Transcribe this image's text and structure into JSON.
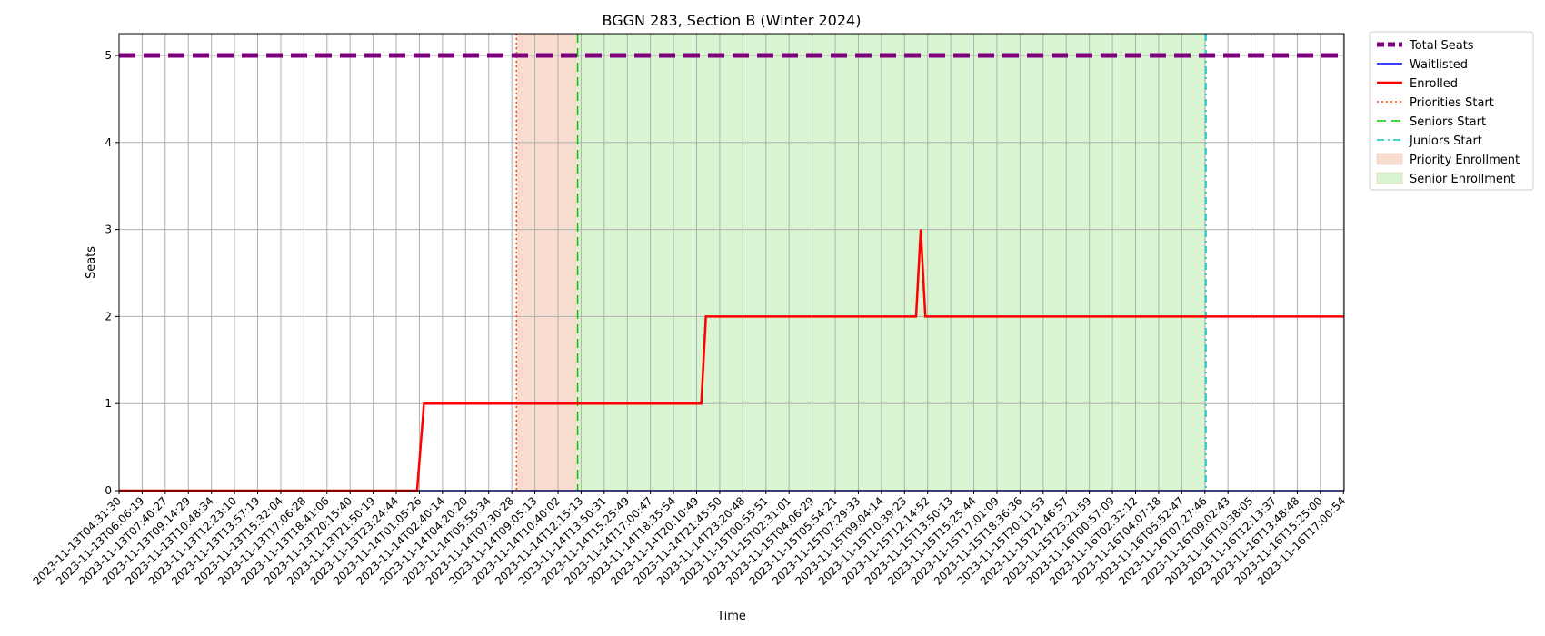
{
  "chart_data": {
    "type": "line",
    "title": "BGGN 283, Section B (Winter 2024)",
    "xlabel": "Time",
    "ylabel": "Seats",
    "ylim": [
      0,
      5.25
    ],
    "y_ticks": [
      0,
      1,
      2,
      3,
      4,
      5
    ],
    "grid": true,
    "legend_position": "outside-top-right",
    "x_ticks": [
      "2023-11-13T04:31:30",
      "2023-11-13T06:06:19",
      "2023-11-13T07:40:27",
      "2023-11-13T09:14:29",
      "2023-11-13T10:48:34",
      "2023-11-13T12:23:10",
      "2023-11-13T13:57:19",
      "2023-11-13T15:32:04",
      "2023-11-13T17:06:28",
      "2023-11-13T18:41:06",
      "2023-11-13T20:15:40",
      "2023-11-13T21:50:19",
      "2023-11-13T23:24:44",
      "2023-11-14T01:05:26",
      "2023-11-14T02:40:14",
      "2023-11-14T04:20:20",
      "2023-11-14T05:55:34",
      "2023-11-14T07:30:28",
      "2023-11-14T09:05:13",
      "2023-11-14T10:40:02",
      "2023-11-14T12:15:13",
      "2023-11-14T13:50:31",
      "2023-11-14T15:25:49",
      "2023-11-14T17:00:47",
      "2023-11-14T18:35:54",
      "2023-11-14T20:10:49",
      "2023-11-14T21:45:50",
      "2023-11-14T23:20:48",
      "2023-11-15T00:55:51",
      "2023-11-15T02:31:01",
      "2023-11-15T04:06:29",
      "2023-11-15T05:54:21",
      "2023-11-15T07:29:33",
      "2023-11-15T09:04:14",
      "2023-11-15T10:39:23",
      "2023-11-15T12:14:52",
      "2023-11-15T13:50:13",
      "2023-11-15T15:25:44",
      "2023-11-15T17:01:09",
      "2023-11-15T18:36:36",
      "2023-11-15T20:11:53",
      "2023-11-15T21:46:57",
      "2023-11-15T23:21:59",
      "2023-11-16T00:57:09",
      "2023-11-16T02:32:12",
      "2023-11-16T04:07:18",
      "2023-11-16T05:52:47",
      "2023-11-16T07:27:46",
      "2023-11-16T09:02:43",
      "2023-11-16T10:38:05",
      "2023-11-16T12:13:37",
      "2023-11-16T13:48:48",
      "2023-11-16T15:25:00",
      "2023-11-16T17:00:54"
    ],
    "x_range_in_tick_units": [
      0,
      53.1
    ],
    "series": [
      {
        "name": "Total Seats",
        "color": "#800080",
        "style": "dashed",
        "points": [
          [
            0,
            5
          ],
          [
            53.1,
            5
          ]
        ]
      },
      {
        "name": "Waitlisted",
        "color": "#0000ff",
        "style": "solid",
        "points": [
          [
            0,
            0
          ],
          [
            53.1,
            0
          ]
        ]
      },
      {
        "name": "Enrolled",
        "color": "#ff0000",
        "style": "solid",
        "points": [
          [
            0,
            0
          ],
          [
            12.9,
            0
          ],
          [
            13.2,
            1
          ],
          [
            25.2,
            1
          ],
          [
            25.4,
            2
          ],
          [
            34.5,
            2
          ],
          [
            34.7,
            3
          ],
          [
            34.9,
            2
          ],
          [
            53.1,
            2
          ]
        ]
      }
    ],
    "vertical_lines": [
      {
        "name": "Priorities Start",
        "color": "#ff4500",
        "style": "dotted",
        "x": 17.2
      },
      {
        "name": "Seniors Start",
        "color": "#00cc00",
        "style": "dashed",
        "x": 19.85
      },
      {
        "name": "Juniors Start",
        "color": "#00c8c8",
        "style": "dashdot",
        "x": 47.05
      }
    ],
    "shaded_regions": [
      {
        "name": "Priority Enrollment",
        "color": "#f8dccf",
        "x_start": 17.2,
        "x_end": 19.85
      },
      {
        "name": "Senior Enrollment",
        "color": "#d9f5d1",
        "x_start": 19.85,
        "x_end": 47.05
      }
    ],
    "legend": [
      "Total Seats",
      "Waitlisted",
      "Enrolled",
      "Priorities Start",
      "Seniors Start",
      "Juniors Start",
      "Priority Enrollment",
      "Senior Enrollment"
    ]
  }
}
